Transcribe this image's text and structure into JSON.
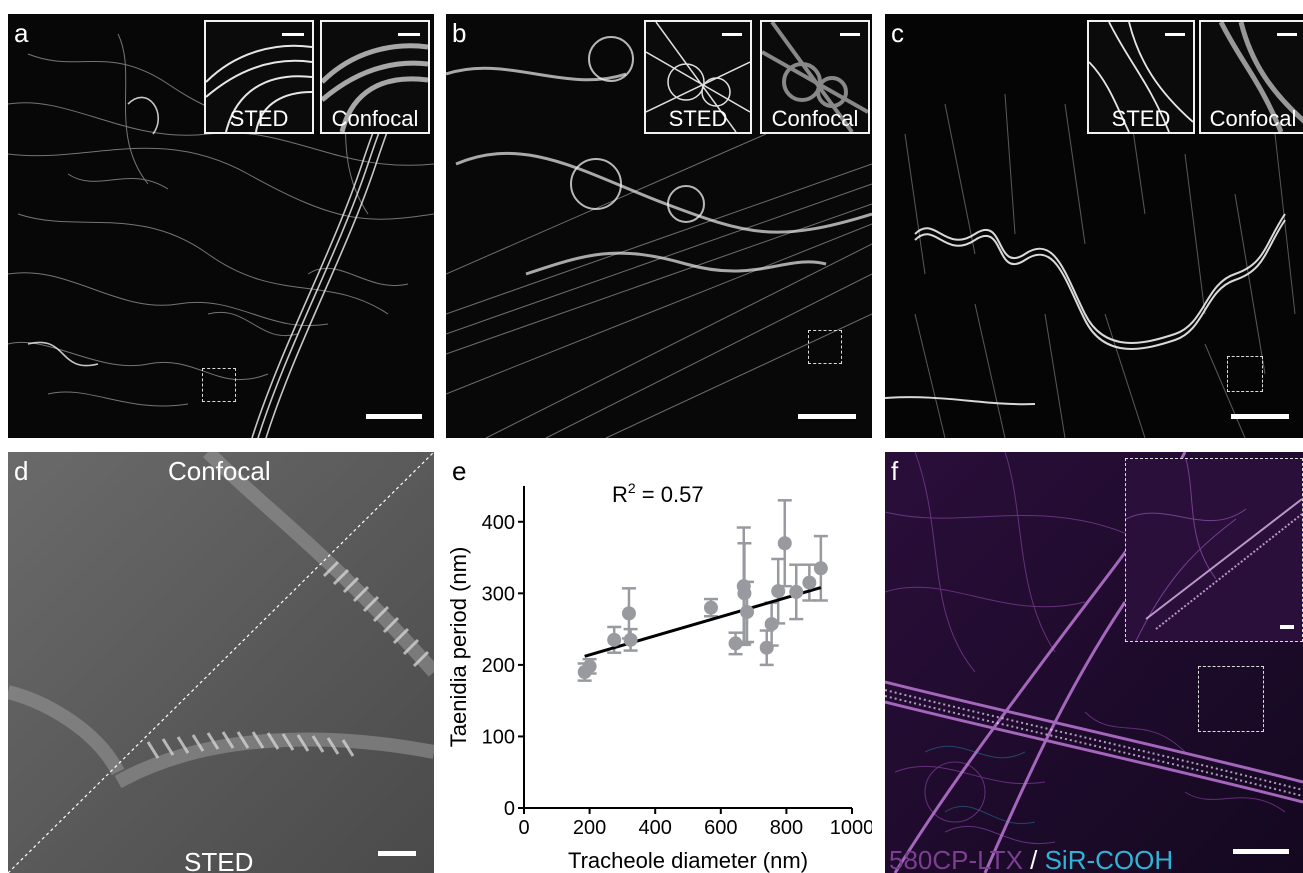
{
  "panels": {
    "a": {
      "label": "a",
      "inset_sted": "STED",
      "inset_confocal": "Confocal"
    },
    "b": {
      "label": "b",
      "inset_sted": "STED",
      "inset_confocal": "Confocal"
    },
    "c": {
      "label": "c",
      "inset_sted": "STED",
      "inset_confocal": "Confocal"
    },
    "d": {
      "label": "d",
      "top_text": "Confocal",
      "bottom_text": "STED"
    },
    "e": {
      "label": "e",
      "annotation_base": "R",
      "annotation_sup": "2",
      "annotation_rest": " = 0.57"
    },
    "f": {
      "label": "f",
      "legend_probe1": "580CP-LTX",
      "legend_sep": " / ",
      "legend_probe2": "SiR-COOH"
    }
  },
  "colors": {
    "marker": "#999aa0",
    "fit_line": "#000000",
    "probe1": "#7a3f8e",
    "probe2": "#2fb4d6"
  },
  "chart_data": {
    "type": "scatter",
    "title": "",
    "xlabel": "Tracheole diameter (nm)",
    "ylabel": "Taenidia period (nm)",
    "xlim": [
      0,
      1000
    ],
    "ylim": [
      0,
      450
    ],
    "xticks": [
      0,
      200,
      400,
      600,
      800,
      1000
    ],
    "yticks": [
      0,
      100,
      200,
      300,
      400
    ],
    "grid": false,
    "annotation": "R2 = 0.57",
    "fit": {
      "x": [
        185,
        905
      ],
      "y": [
        212,
        308
      ]
    },
    "points": [
      {
        "x": 185,
        "y": 190,
        "err": 12
      },
      {
        "x": 200,
        "y": 198,
        "err": 10
      },
      {
        "x": 275,
        "y": 235,
        "err": 18
      },
      {
        "x": 320,
        "y": 272,
        "err": 35
      },
      {
        "x": 325,
        "y": 235,
        "err": 15
      },
      {
        "x": 570,
        "y": 280,
        "err": 12
      },
      {
        "x": 645,
        "y": 230,
        "err": 15
      },
      {
        "x": 670,
        "y": 310,
        "err": 82
      },
      {
        "x": 672,
        "y": 300,
        "err": 70
      },
      {
        "x": 680,
        "y": 274,
        "err": 42
      },
      {
        "x": 740,
        "y": 224,
        "err": 24
      },
      {
        "x": 755,
        "y": 257,
        "err": 30
      },
      {
        "x": 775,
        "y": 303,
        "err": 45
      },
      {
        "x": 795,
        "y": 370,
        "err": 60
      },
      {
        "x": 830,
        "y": 302,
        "err": 38
      },
      {
        "x": 870,
        "y": 315,
        "err": 25
      },
      {
        "x": 905,
        "y": 335,
        "err": 45
      }
    ]
  }
}
